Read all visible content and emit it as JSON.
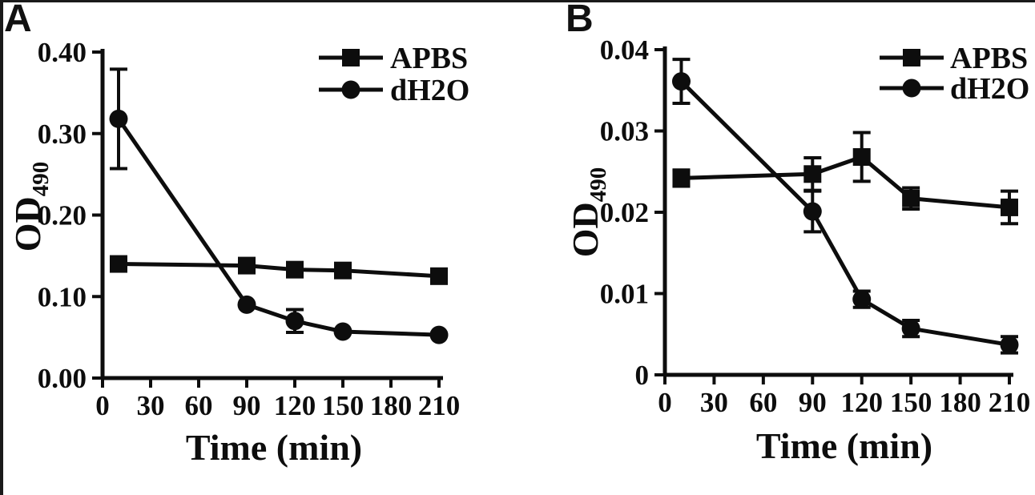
{
  "figure": {
    "background": "#ffffff",
    "ink_color": "#0d0d0d",
    "border_color": "#1a1a1a"
  },
  "chart_data": [
    {
      "type": "line",
      "panel_label": "A",
      "title": "",
      "xlabel": "Time (min)",
      "ylabel": "OD",
      "ylabel_subscript": "490",
      "xlim": [
        0,
        210
      ],
      "ylim": [
        0,
        0.4
      ],
      "x_tick_values": [
        0,
        30,
        60,
        90,
        120,
        150,
        180,
        210
      ],
      "x_tick_labels": [
        "0",
        "30",
        "60",
        "90",
        "120",
        "150",
        "180",
        "210"
      ],
      "y_tick_values": [
        0,
        0.1,
        0.2,
        0.3,
        0.4
      ],
      "y_tick_labels": [
        "0.00",
        "0.10",
        "0.20",
        "0.30",
        "0.40"
      ],
      "grid": false,
      "legend_position": "top-right",
      "x": [
        10,
        90,
        120,
        150,
        210
      ],
      "series": [
        {
          "name": "APBS",
          "marker": "square",
          "values": [
            0.14,
            0.138,
            0.133,
            0.132,
            0.125
          ],
          "errors": [
            0,
            0,
            0,
            0,
            0
          ]
        },
        {
          "name": "dH2O",
          "marker": "circle",
          "values": [
            0.318,
            0.09,
            0.07,
            0.057,
            0.053
          ],
          "errors": [
            0.061,
            0,
            0.014,
            0,
            0
          ]
        }
      ]
    },
    {
      "type": "line",
      "panel_label": "B",
      "title": "",
      "xlabel": "Time (min)",
      "ylabel": "OD",
      "ylabel_subscript": "490",
      "xlim": [
        0,
        210
      ],
      "ylim": [
        0,
        0.04
      ],
      "x_tick_values": [
        0,
        30,
        60,
        90,
        120,
        150,
        180,
        210
      ],
      "x_tick_labels": [
        "0",
        "30",
        "60",
        "90",
        "120",
        "150",
        "180",
        "210"
      ],
      "y_tick_values": [
        0,
        0.01,
        0.02,
        0.03,
        0.04
      ],
      "y_tick_labels": [
        "0",
        "0.01",
        "0.02",
        "0.03",
        "0.04"
      ],
      "grid": false,
      "legend_position": "top-right",
      "x": [
        10,
        90,
        120,
        150,
        210
      ],
      "series": [
        {
          "name": "APBS",
          "marker": "square",
          "values": [
            0.0242,
            0.0247,
            0.0268,
            0.0217,
            0.0206
          ],
          "errors": [
            0.001,
            0.002,
            0.003,
            0.0013,
            0.002
          ]
        },
        {
          "name": "dH2O",
          "marker": "circle",
          "values": [
            0.0361,
            0.0201,
            0.0093,
            0.0057,
            0.0037
          ],
          "errors": [
            0.0027,
            0.0025,
            0.001,
            0.001,
            0.001
          ]
        }
      ]
    }
  ]
}
